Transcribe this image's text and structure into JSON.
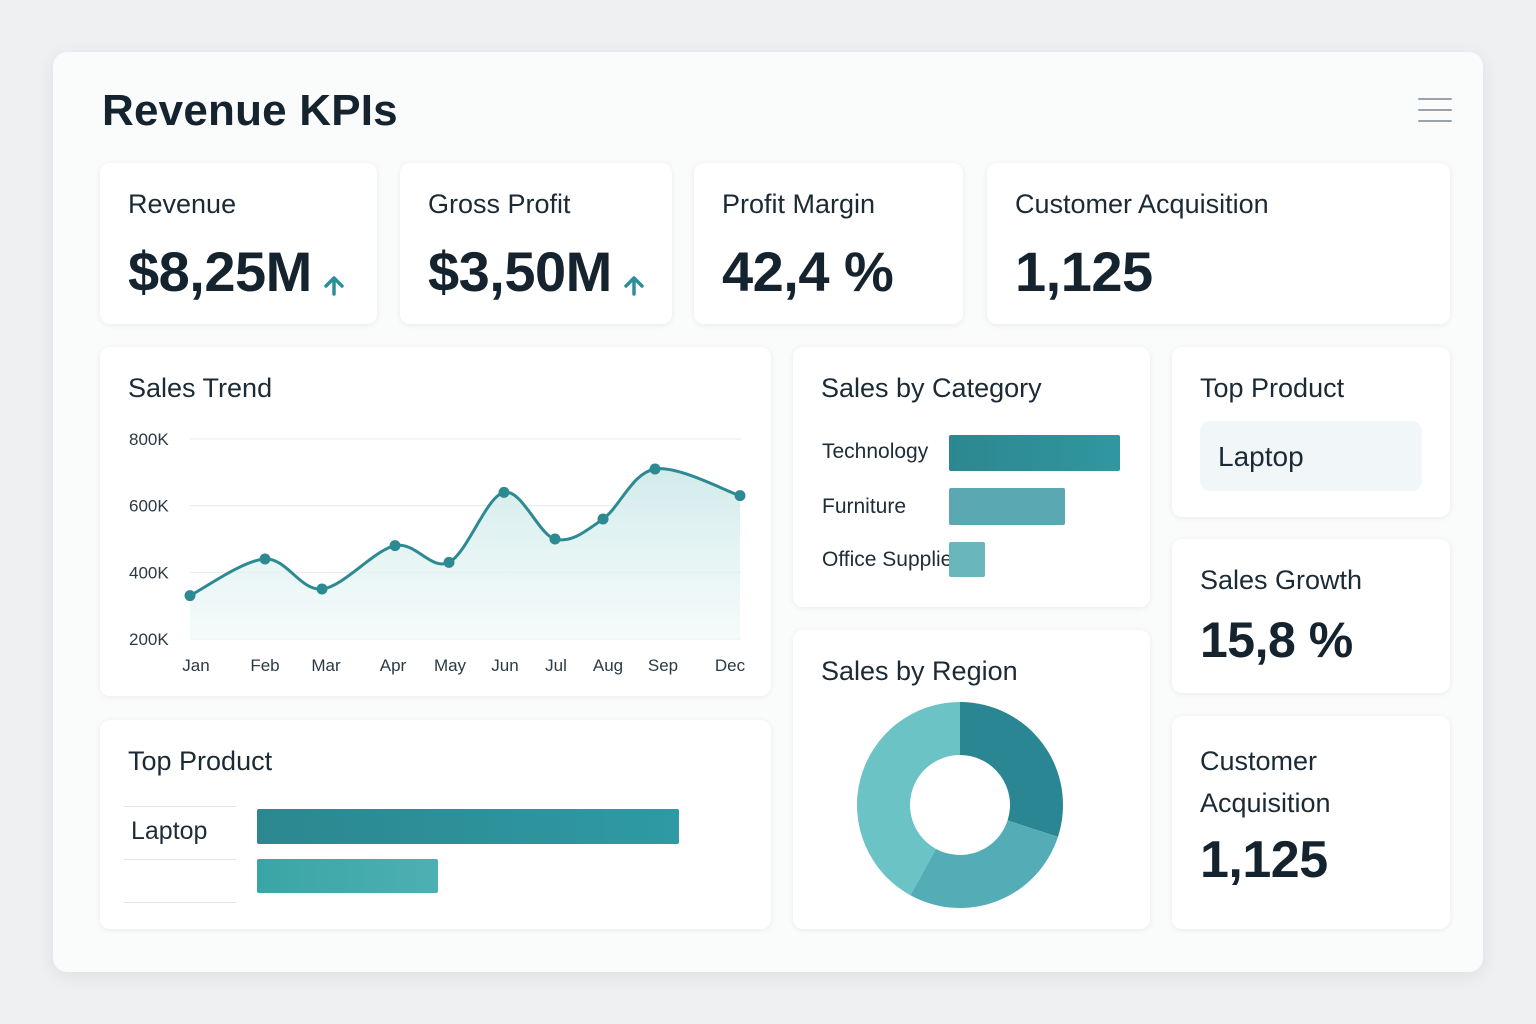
{
  "title": "Revenue KPIs",
  "colors": {
    "accent": "#2f8f98",
    "accent_light": "#5fb2b9",
    "accent_fill": "#d6eeee",
    "text": "#14232e"
  },
  "kpis": [
    {
      "label": "Revenue",
      "value": "$8,25M",
      "trend_icon": "arrow-up-icon"
    },
    {
      "label": "Gross Profit",
      "value": "$3,50M",
      "trend_icon": "arrow-up-icon"
    },
    {
      "label": "Profit Margin",
      "value": "42,4 %"
    },
    {
      "label": "Customer Acquisition",
      "value": "1,125"
    }
  ],
  "sales_trend": {
    "title": "Sales Trend",
    "chart_data": {
      "type": "area",
      "title": "Sales Trend",
      "categories": [
        "Jan",
        "Feb",
        "Mar",
        "Apr",
        "May",
        "Jun",
        "Jul",
        "Aug",
        "Sep",
        "Dec"
      ],
      "values": [
        330000,
        440000,
        350000,
        480000,
        430000,
        640000,
        500000,
        560000,
        710000,
        630000
      ],
      "y_ticks": [
        "800K",
        "600K",
        "400K",
        "200K"
      ],
      "ylim": [
        200000,
        800000
      ],
      "grid": true
    }
  },
  "sales_by_category": {
    "title": "Sales by Category",
    "chart_data": {
      "type": "bar",
      "orientation": "horizontal",
      "categories": [
        "Technology",
        "Furniture",
        "Office Supplies"
      ],
      "values": [
        100,
        68,
        21
      ],
      "xlim": [
        0,
        100
      ]
    }
  },
  "top_product_small": {
    "title": "Top Product",
    "value": "Laptop"
  },
  "sales_growth": {
    "title": "Sales Growth",
    "value": "15,8 %"
  },
  "customer_acquisition": {
    "title_line1": "Customer",
    "title_line2": "Acquisition",
    "value": "1,125"
  },
  "top_product_chart": {
    "title": "Top Product",
    "chart_data": {
      "type": "bar",
      "orientation": "horizontal",
      "categories": [
        "Laptop",
        ""
      ],
      "values": [
        100,
        43
      ],
      "xlim": [
        0,
        100
      ]
    }
  },
  "sales_by_region": {
    "title": "Sales by Region",
    "chart_data": {
      "type": "pie",
      "donut": true,
      "values": [
        30,
        28,
        42
      ],
      "colors": [
        "#2a8693",
        "#54adb6",
        "#6cc3c6"
      ]
    }
  }
}
